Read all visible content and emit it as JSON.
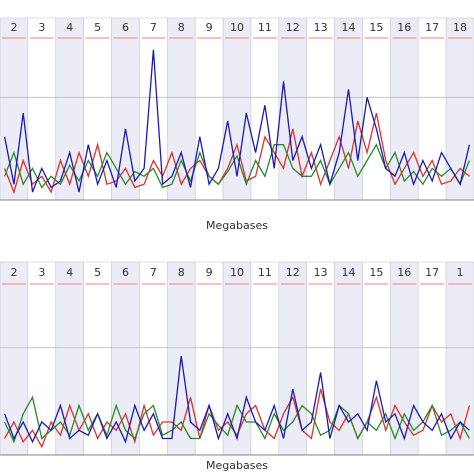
{
  "chart_data": [
    {
      "type": "line",
      "x_label": "Megabases",
      "chromosomes": [
        "2",
        "3",
        "4",
        "5",
        "6",
        "7",
        "8",
        "9",
        "10",
        "11",
        "12",
        "13",
        "14",
        "15",
        "16",
        "17",
        "18"
      ],
      "x": [
        0,
        1,
        2,
        3,
        4,
        5,
        6,
        7,
        8,
        9,
        10,
        11,
        12,
        13,
        14,
        15,
        16,
        17,
        18,
        19,
        20,
        21,
        22,
        23,
        24,
        25,
        26,
        27,
        28,
        29,
        30,
        31,
        32,
        33,
        34,
        35,
        36,
        37,
        38,
        39,
        40,
        41,
        42,
        43,
        44,
        45,
        46,
        47,
        48,
        49,
        50
      ],
      "xlim": [
        0,
        51
      ],
      "ylim": [
        0,
        100
      ],
      "series": [
        {
          "color": "#e03030",
          "values": [
            20,
            5,
            25,
            10,
            15,
            5,
            25,
            10,
            30,
            15,
            35,
            10,
            12,
            20,
            8,
            10,
            25,
            15,
            30,
            10,
            20,
            25,
            15,
            10,
            20,
            35,
            12,
            15,
            40,
            30,
            20,
            45,
            15,
            30,
            10,
            25,
            40,
            20,
            50,
            30,
            55,
            25,
            10,
            20,
            30,
            15,
            25,
            10,
            12,
            20,
            15
          ]
        },
        {
          "color": "#2a8a2a",
          "values": [
            15,
            30,
            10,
            20,
            8,
            15,
            10,
            22,
            12,
            25,
            15,
            30,
            20,
            10,
            18,
            15,
            20,
            8,
            10,
            25,
            12,
            30,
            15,
            10,
            18,
            28,
            10,
            25,
            15,
            35,
            35,
            20,
            15,
            15,
            25,
            10,
            20,
            30,
            15,
            25,
            35,
            20,
            30,
            12,
            18,
            10,
            20,
            15,
            20,
            10,
            25
          ]
        },
        {
          "color": "#1a1ab8",
          "values": [
            40,
            10,
            55,
            5,
            20,
            8,
            12,
            30,
            5,
            35,
            10,
            25,
            8,
            45,
            12,
            20,
            95,
            10,
            15,
            30,
            8,
            40,
            10,
            20,
            50,
            15,
            55,
            30,
            60,
            20,
            75,
            25,
            40,
            20,
            35,
            10,
            30,
            70,
            25,
            65,
            45,
            20,
            15,
            30,
            10,
            25,
            12,
            30,
            20,
            10,
            35
          ]
        }
      ]
    },
    {
      "type": "line",
      "x_label": "Megabases",
      "chromosomes": [
        "2",
        "3",
        "4",
        "5",
        "6",
        "7",
        "8",
        "9",
        "10",
        "11",
        "12",
        "13",
        "14",
        "15",
        "16",
        "17",
        "1"
      ],
      "x": [
        0,
        1,
        2,
        3,
        4,
        5,
        6,
        7,
        8,
        9,
        10,
        11,
        12,
        13,
        14,
        15,
        16,
        17,
        18,
        19,
        20,
        21,
        22,
        23,
        24,
        25,
        26,
        27,
        28,
        29,
        30,
        31,
        32,
        33,
        34,
        35,
        36,
        37,
        38,
        39,
        40,
        41,
        42,
        43,
        44,
        45,
        46,
        47,
        48,
        49,
        50
      ],
      "xlim": [
        0,
        51
      ],
      "ylim": [
        0,
        100
      ],
      "series": [
        {
          "color": "#e03030",
          "values": [
            10,
            20,
            8,
            15,
            5,
            20,
            12,
            30,
            15,
            25,
            10,
            20,
            15,
            25,
            8,
            30,
            12,
            20,
            20,
            15,
            35,
            10,
            30,
            15,
            20,
            12,
            25,
            30,
            15,
            10,
            25,
            35,
            15,
            10,
            40,
            20,
            15,
            25,
            10,
            20,
            35,
            15,
            30,
            20,
            12,
            15,
            30,
            20,
            25,
            10,
            30
          ]
        },
        {
          "color": "#2a8a2a",
          "values": [
            20,
            8,
            25,
            35,
            10,
            15,
            20,
            12,
            30,
            15,
            25,
            12,
            30,
            15,
            10,
            25,
            30,
            12,
            15,
            20,
            10,
            10,
            25,
            18,
            12,
            30,
            20,
            20,
            10,
            25,
            15,
            20,
            30,
            25,
            12,
            15,
            30,
            25,
            10,
            20,
            15,
            25,
            10,
            25,
            15,
            20,
            30,
            12,
            15,
            20,
            10
          ]
        },
        {
          "color": "#1a1ab8",
          "values": [
            25,
            10,
            20,
            8,
            20,
            15,
            30,
            10,
            15,
            12,
            25,
            10,
            20,
            8,
            30,
            15,
            25,
            10,
            10,
            60,
            20,
            15,
            30,
            10,
            25,
            10,
            35,
            20,
            15,
            30,
            10,
            40,
            15,
            20,
            50,
            10,
            30,
            20,
            25,
            15,
            45,
            20,
            25,
            10,
            30,
            20,
            15,
            25,
            10,
            20,
            15
          ]
        }
      ]
    }
  ]
}
